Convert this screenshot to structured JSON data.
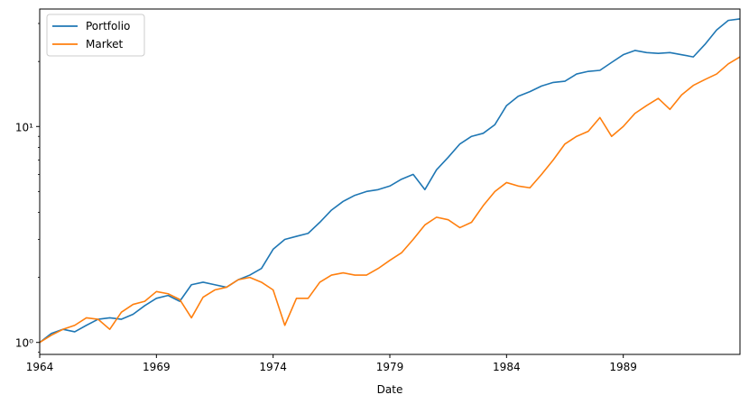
{
  "chart_data": {
    "type": "line",
    "title": "",
    "xlabel": "Date",
    "ylabel": "",
    "yscale": "log",
    "xlim": [
      1964.0,
      1994.0
    ],
    "ylim": [
      0.88,
      35
    ],
    "grid": false,
    "legend_position": "top-left",
    "x_ticks": [
      {
        "value": 1964,
        "label": "1964"
      },
      {
        "value": 1969,
        "label": "1969"
      },
      {
        "value": 1974,
        "label": "1974"
      },
      {
        "value": 1979,
        "label": "1979"
      },
      {
        "value": 1984,
        "label": "1984"
      },
      {
        "value": 1989,
        "label": "1989"
      }
    ],
    "y_ticks": [
      {
        "value": 1,
        "label": "10⁰"
      },
      {
        "value": 10,
        "label": "10¹"
      }
    ],
    "series": [
      {
        "name": "Portfolio",
        "color": "#1f77b4",
        "x": [
          1964.0,
          1964.5,
          1965.0,
          1965.5,
          1966.0,
          1966.5,
          1967.0,
          1967.5,
          1968.0,
          1968.5,
          1969.0,
          1969.5,
          1970.0,
          1970.5,
          1971.0,
          1971.5,
          1972.0,
          1972.5,
          1973.0,
          1973.5,
          1974.0,
          1974.5,
          1975.0,
          1975.5,
          1976.0,
          1976.5,
          1977.0,
          1977.5,
          1978.0,
          1978.5,
          1979.0,
          1979.5,
          1980.0,
          1980.5,
          1981.0,
          1981.5,
          1982.0,
          1982.5,
          1983.0,
          1983.5,
          1984.0,
          1984.5,
          1985.0,
          1985.5,
          1986.0,
          1986.5,
          1987.0,
          1987.5,
          1988.0,
          1988.5,
          1989.0,
          1989.5,
          1990.0,
          1990.5,
          1991.0,
          1991.5,
          1992.0,
          1992.5,
          1993.0,
          1993.5,
          1994.0
        ],
        "values": [
          1.0,
          1.1,
          1.15,
          1.12,
          1.2,
          1.28,
          1.3,
          1.28,
          1.35,
          1.48,
          1.6,
          1.65,
          1.55,
          1.85,
          1.9,
          1.85,
          1.8,
          1.95,
          2.05,
          2.2,
          2.7,
          3.0,
          3.1,
          3.2,
          3.6,
          4.1,
          4.5,
          4.8,
          5.0,
          5.1,
          5.3,
          5.7,
          6.0,
          5.1,
          6.3,
          7.2,
          8.3,
          9.0,
          9.3,
          10.2,
          12.5,
          13.8,
          14.5,
          15.4,
          16.0,
          16.2,
          17.5,
          18.0,
          18.2,
          19.8,
          21.5,
          22.5,
          22.0,
          21.8,
          22.0,
          21.5,
          21.0,
          24.0,
          28.0,
          31.0,
          31.5
        ]
      },
      {
        "name": "Market",
        "color": "#ff7f0e",
        "x": [
          1964.0,
          1964.5,
          1965.0,
          1965.5,
          1966.0,
          1966.5,
          1967.0,
          1967.5,
          1968.0,
          1968.5,
          1969.0,
          1969.5,
          1970.0,
          1970.5,
          1971.0,
          1971.5,
          1972.0,
          1972.5,
          1973.0,
          1973.5,
          1974.0,
          1974.5,
          1975.0,
          1975.5,
          1976.0,
          1976.5,
          1977.0,
          1977.5,
          1978.0,
          1978.5,
          1979.0,
          1979.5,
          1980.0,
          1980.5,
          1981.0,
          1981.5,
          1982.0,
          1982.5,
          1983.0,
          1983.5,
          1984.0,
          1984.5,
          1985.0,
          1985.5,
          1986.0,
          1986.5,
          1987.0,
          1987.5,
          1988.0,
          1988.5,
          1989.0,
          1989.5,
          1990.0,
          1990.5,
          1991.0,
          1991.5,
          1992.0,
          1992.5,
          1993.0,
          1993.5,
          1994.0
        ],
        "values": [
          1.0,
          1.08,
          1.15,
          1.2,
          1.3,
          1.28,
          1.15,
          1.38,
          1.5,
          1.55,
          1.72,
          1.68,
          1.58,
          1.3,
          1.62,
          1.75,
          1.8,
          1.95,
          2.0,
          1.9,
          1.75,
          1.2,
          1.6,
          1.6,
          1.9,
          2.05,
          2.1,
          2.05,
          2.05,
          2.2,
          2.4,
          2.6,
          3.0,
          3.5,
          3.8,
          3.7,
          3.4,
          3.6,
          4.3,
          5.0,
          5.5,
          5.3,
          5.2,
          6.0,
          7.0,
          8.3,
          9.0,
          9.5,
          11.0,
          9.0,
          10.0,
          11.5,
          12.5,
          13.5,
          12.0,
          14.0,
          15.5,
          16.5,
          17.5,
          19.5,
          21.0
        ]
      }
    ]
  }
}
